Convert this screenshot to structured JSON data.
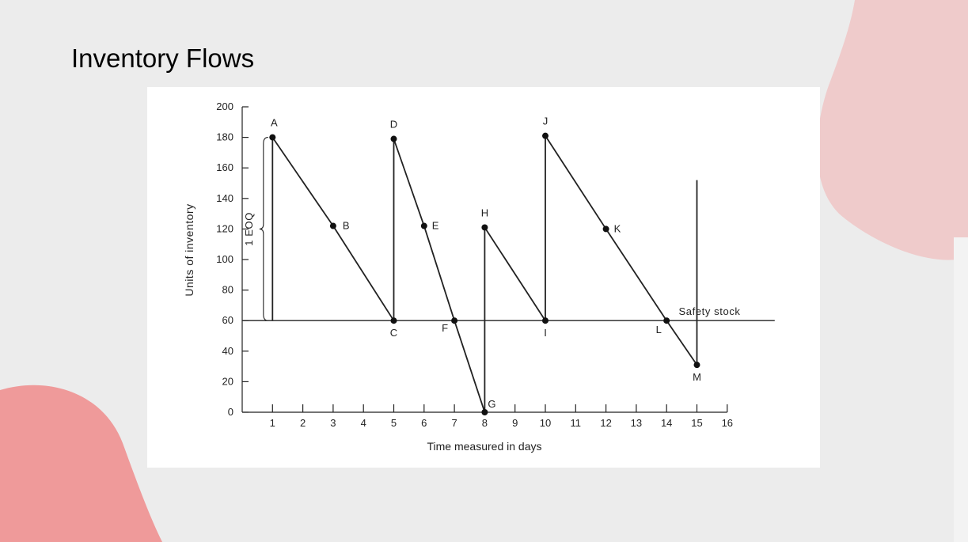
{
  "slide": {
    "title": "Inventory Flows"
  },
  "chart_data": {
    "type": "line",
    "title": "",
    "xlabel": "Time measured in days",
    "ylabel": "Units of inventory",
    "xlim": [
      0,
      16
    ],
    "ylim": [
      0,
      200
    ],
    "x_ticks": [
      1,
      2,
      3,
      4,
      5,
      6,
      7,
      8,
      9,
      10,
      11,
      12,
      13,
      14,
      15,
      16
    ],
    "y_ticks": [
      0,
      20,
      40,
      60,
      80,
      100,
      120,
      140,
      160,
      180,
      200
    ],
    "grid": false,
    "series": [
      {
        "name": "",
        "points": [
          {
            "x": 1,
            "y": 60,
            "label": ""
          },
          {
            "x": 1,
            "y": 180,
            "label": "A"
          },
          {
            "x": 3,
            "y": 122,
            "label": "B"
          },
          {
            "x": 5,
            "y": 60,
            "label": "C"
          },
          {
            "x": 5,
            "y": 179,
            "label": "D"
          },
          {
            "x": 6,
            "y": 122,
            "label": "E"
          },
          {
            "x": 7,
            "y": 60,
            "label": "F"
          },
          {
            "x": 8,
            "y": 0,
            "label": "G"
          },
          {
            "x": 8,
            "y": 121,
            "label": "H"
          },
          {
            "x": 10,
            "y": 60,
            "label": "I"
          },
          {
            "x": 10,
            "y": 181,
            "label": "J"
          },
          {
            "x": 12,
            "y": 120,
            "label": "K"
          },
          {
            "x": 14,
            "y": 60,
            "label": "L"
          },
          {
            "x": 15,
            "y": 31,
            "label": "M"
          }
        ]
      }
    ],
    "reference_lines": [
      {
        "type": "horizontal",
        "y": 60,
        "label": "Safety stock"
      },
      {
        "type": "vertical",
        "x": 15,
        "y_range": [
          31,
          152
        ],
        "label": ""
      }
    ],
    "annotations": [
      {
        "text": "1 EOQ",
        "span_y": [
          60,
          180
        ]
      }
    ]
  }
}
